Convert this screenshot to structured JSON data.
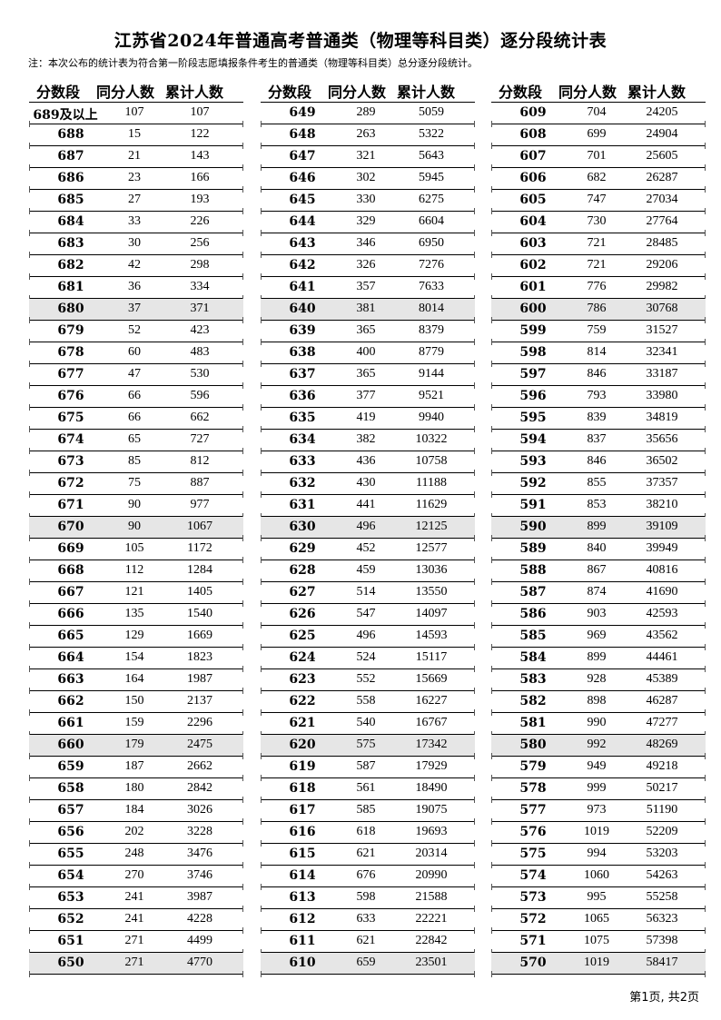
{
  "title": "江苏省2024年普通高考普通类（物理等科目类）逐分段统计表",
  "note": "注：本次公布的统计表为符合第一阶段志愿填报条件考生的普通类（物理等科目类）总分逐分段统计。",
  "headers": [
    "分数段",
    "同分人数",
    "累计人数"
  ],
  "columns": [
    [
      [
        "689及以上",
        "107",
        "107"
      ],
      [
        "688",
        "15",
        "122"
      ],
      [
        "687",
        "21",
        "143"
      ],
      [
        "686",
        "23",
        "166"
      ],
      [
        "685",
        "27",
        "193"
      ],
      [
        "684",
        "33",
        "226"
      ],
      [
        "683",
        "30",
        "256"
      ],
      [
        "682",
        "42",
        "298"
      ],
      [
        "681",
        "36",
        "334"
      ],
      [
        "680",
        "37",
        "371"
      ],
      [
        "679",
        "52",
        "423"
      ],
      [
        "678",
        "60",
        "483"
      ],
      [
        "677",
        "47",
        "530"
      ],
      [
        "676",
        "66",
        "596"
      ],
      [
        "675",
        "66",
        "662"
      ],
      [
        "674",
        "65",
        "727"
      ],
      [
        "673",
        "85",
        "812"
      ],
      [
        "672",
        "75",
        "887"
      ],
      [
        "671",
        "90",
        "977"
      ],
      [
        "670",
        "90",
        "1067"
      ],
      [
        "669",
        "105",
        "1172"
      ],
      [
        "668",
        "112",
        "1284"
      ],
      [
        "667",
        "121",
        "1405"
      ],
      [
        "666",
        "135",
        "1540"
      ],
      [
        "665",
        "129",
        "1669"
      ],
      [
        "664",
        "154",
        "1823"
      ],
      [
        "663",
        "164",
        "1987"
      ],
      [
        "662",
        "150",
        "2137"
      ],
      [
        "661",
        "159",
        "2296"
      ],
      [
        "660",
        "179",
        "2475"
      ],
      [
        "659",
        "187",
        "2662"
      ],
      [
        "658",
        "180",
        "2842"
      ],
      [
        "657",
        "184",
        "3026"
      ],
      [
        "656",
        "202",
        "3228"
      ],
      [
        "655",
        "248",
        "3476"
      ],
      [
        "654",
        "270",
        "3746"
      ],
      [
        "653",
        "241",
        "3987"
      ],
      [
        "652",
        "241",
        "4228"
      ],
      [
        "651",
        "271",
        "4499"
      ],
      [
        "650",
        "271",
        "4770"
      ]
    ],
    [
      [
        "649",
        "289",
        "5059"
      ],
      [
        "648",
        "263",
        "5322"
      ],
      [
        "647",
        "321",
        "5643"
      ],
      [
        "646",
        "302",
        "5945"
      ],
      [
        "645",
        "330",
        "6275"
      ],
      [
        "644",
        "329",
        "6604"
      ],
      [
        "643",
        "346",
        "6950"
      ],
      [
        "642",
        "326",
        "7276"
      ],
      [
        "641",
        "357",
        "7633"
      ],
      [
        "640",
        "381",
        "8014"
      ],
      [
        "639",
        "365",
        "8379"
      ],
      [
        "638",
        "400",
        "8779"
      ],
      [
        "637",
        "365",
        "9144"
      ],
      [
        "636",
        "377",
        "9521"
      ],
      [
        "635",
        "419",
        "9940"
      ],
      [
        "634",
        "382",
        "10322"
      ],
      [
        "633",
        "436",
        "10758"
      ],
      [
        "632",
        "430",
        "11188"
      ],
      [
        "631",
        "441",
        "11629"
      ],
      [
        "630",
        "496",
        "12125"
      ],
      [
        "629",
        "452",
        "12577"
      ],
      [
        "628",
        "459",
        "13036"
      ],
      [
        "627",
        "514",
        "13550"
      ],
      [
        "626",
        "547",
        "14097"
      ],
      [
        "625",
        "496",
        "14593"
      ],
      [
        "624",
        "524",
        "15117"
      ],
      [
        "623",
        "552",
        "15669"
      ],
      [
        "622",
        "558",
        "16227"
      ],
      [
        "621",
        "540",
        "16767"
      ],
      [
        "620",
        "575",
        "17342"
      ],
      [
        "619",
        "587",
        "17929"
      ],
      [
        "618",
        "561",
        "18490"
      ],
      [
        "617",
        "585",
        "19075"
      ],
      [
        "616",
        "618",
        "19693"
      ],
      [
        "615",
        "621",
        "20314"
      ],
      [
        "614",
        "676",
        "20990"
      ],
      [
        "613",
        "598",
        "21588"
      ],
      [
        "612",
        "633",
        "22221"
      ],
      [
        "611",
        "621",
        "22842"
      ],
      [
        "610",
        "659",
        "23501"
      ]
    ],
    [
      [
        "609",
        "704",
        "24205"
      ],
      [
        "608",
        "699",
        "24904"
      ],
      [
        "607",
        "701",
        "25605"
      ],
      [
        "606",
        "682",
        "26287"
      ],
      [
        "605",
        "747",
        "27034"
      ],
      [
        "604",
        "730",
        "27764"
      ],
      [
        "603",
        "721",
        "28485"
      ],
      [
        "602",
        "721",
        "29206"
      ],
      [
        "601",
        "776",
        "29982"
      ],
      [
        "600",
        "786",
        "30768"
      ],
      [
        "599",
        "759",
        "31527"
      ],
      [
        "598",
        "814",
        "32341"
      ],
      [
        "597",
        "846",
        "33187"
      ],
      [
        "596",
        "793",
        "33980"
      ],
      [
        "595",
        "839",
        "34819"
      ],
      [
        "594",
        "837",
        "35656"
      ],
      [
        "593",
        "846",
        "36502"
      ],
      [
        "592",
        "855",
        "37357"
      ],
      [
        "591",
        "853",
        "38210"
      ],
      [
        "590",
        "899",
        "39109"
      ],
      [
        "589",
        "840",
        "39949"
      ],
      [
        "588",
        "867",
        "40816"
      ],
      [
        "587",
        "874",
        "41690"
      ],
      [
        "586",
        "903",
        "42593"
      ],
      [
        "585",
        "969",
        "43562"
      ],
      [
        "584",
        "899",
        "44461"
      ],
      [
        "583",
        "928",
        "45389"
      ],
      [
        "582",
        "898",
        "46287"
      ],
      [
        "581",
        "990",
        "47277"
      ],
      [
        "580",
        "992",
        "48269"
      ],
      [
        "579",
        "949",
        "49218"
      ],
      [
        "578",
        "999",
        "50217"
      ],
      [
        "577",
        "973",
        "51190"
      ],
      [
        "576",
        "1019",
        "52209"
      ],
      [
        "575",
        "994",
        "53203"
      ],
      [
        "574",
        "1060",
        "54263"
      ],
      [
        "573",
        "995",
        "55258"
      ],
      [
        "572",
        "1065",
        "56323"
      ],
      [
        "571",
        "1075",
        "57398"
      ],
      [
        "570",
        "1019",
        "58417"
      ]
    ]
  ],
  "shade_color": "#e6e6e6",
  "footer": "第1页, 共2页"
}
